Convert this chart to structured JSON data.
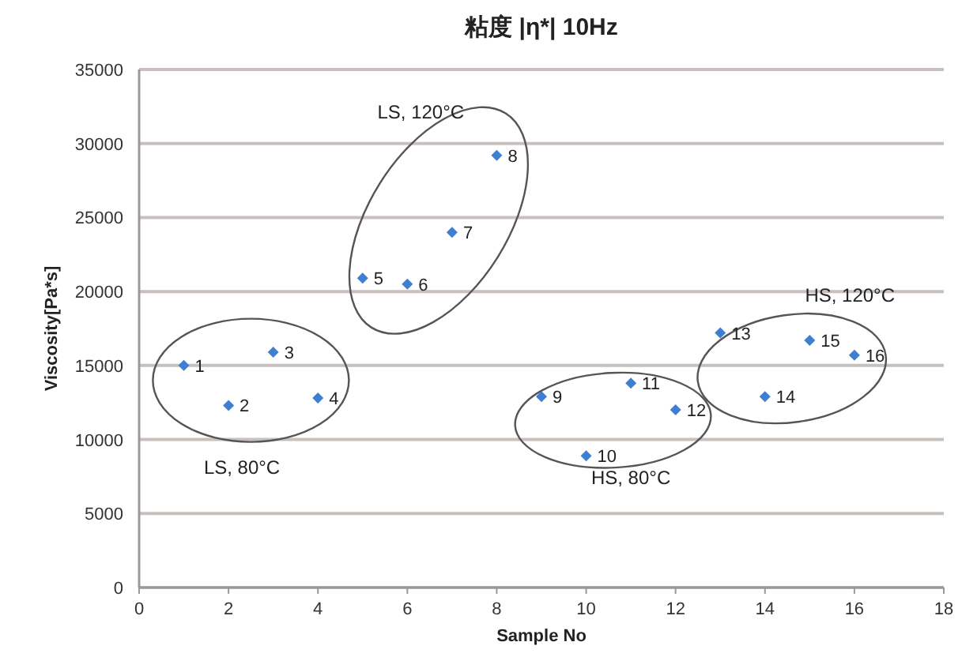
{
  "chart_data": {
    "type": "scatter",
    "title": "粘度 |η*| 10Hz",
    "xlabel": "Sample No",
    "ylabel": "Viscosity[Pa*s]",
    "x": [
      1,
      2,
      3,
      4,
      5,
      6,
      7,
      8,
      9,
      10,
      11,
      12,
      13,
      14,
      15,
      16
    ],
    "series": [
      {
        "color": "#3f7fd0",
        "values": [
          15000,
          12300,
          15900,
          12800,
          20900,
          20500,
          24000,
          29200,
          12900,
          8900,
          13800,
          12000,
          17200,
          12900,
          16700,
          15700
        ]
      }
    ],
    "xlim": [
      0,
      18
    ],
    "xticks": [
      0,
      2,
      4,
      6,
      8,
      10,
      12,
      14,
      16,
      18
    ],
    "ylim": [
      0,
      35000
    ],
    "yticks": [
      0,
      5000,
      10000,
      15000,
      20000,
      25000,
      30000,
      35000
    ],
    "grid": "y",
    "marker": "diamond",
    "annotations": [
      {
        "text": "1",
        "x": 1,
        "y": 15000
      },
      {
        "text": "2",
        "x": 2,
        "y": 12300
      },
      {
        "text": "3",
        "x": 3,
        "y": 15900
      },
      {
        "text": "4",
        "x": 4,
        "y": 12800
      },
      {
        "text": "5",
        "x": 5,
        "y": 20900
      },
      {
        "text": "6",
        "x": 6,
        "y": 20500
      },
      {
        "text": "7",
        "x": 7,
        "y": 24000
      },
      {
        "text": "8",
        "x": 8,
        "y": 29200
      },
      {
        "text": "9",
        "x": 9,
        "y": 12900
      },
      {
        "text": "10",
        "x": 10,
        "y": 8900
      },
      {
        "text": "11",
        "x": 11,
        "y": 13800
      },
      {
        "text": "12",
        "x": 12,
        "y": 12000
      },
      {
        "text": "13",
        "x": 13,
        "y": 17200
      },
      {
        "text": "14",
        "x": 14,
        "y": 12900
      },
      {
        "text": "15",
        "x": 15,
        "y": 16700
      },
      {
        "text": "16",
        "x": 16,
        "y": 15700
      },
      "LS, 80°C",
      "LS, 120°C",
      "HS, 80°C",
      "HS, 120°C"
    ]
  }
}
